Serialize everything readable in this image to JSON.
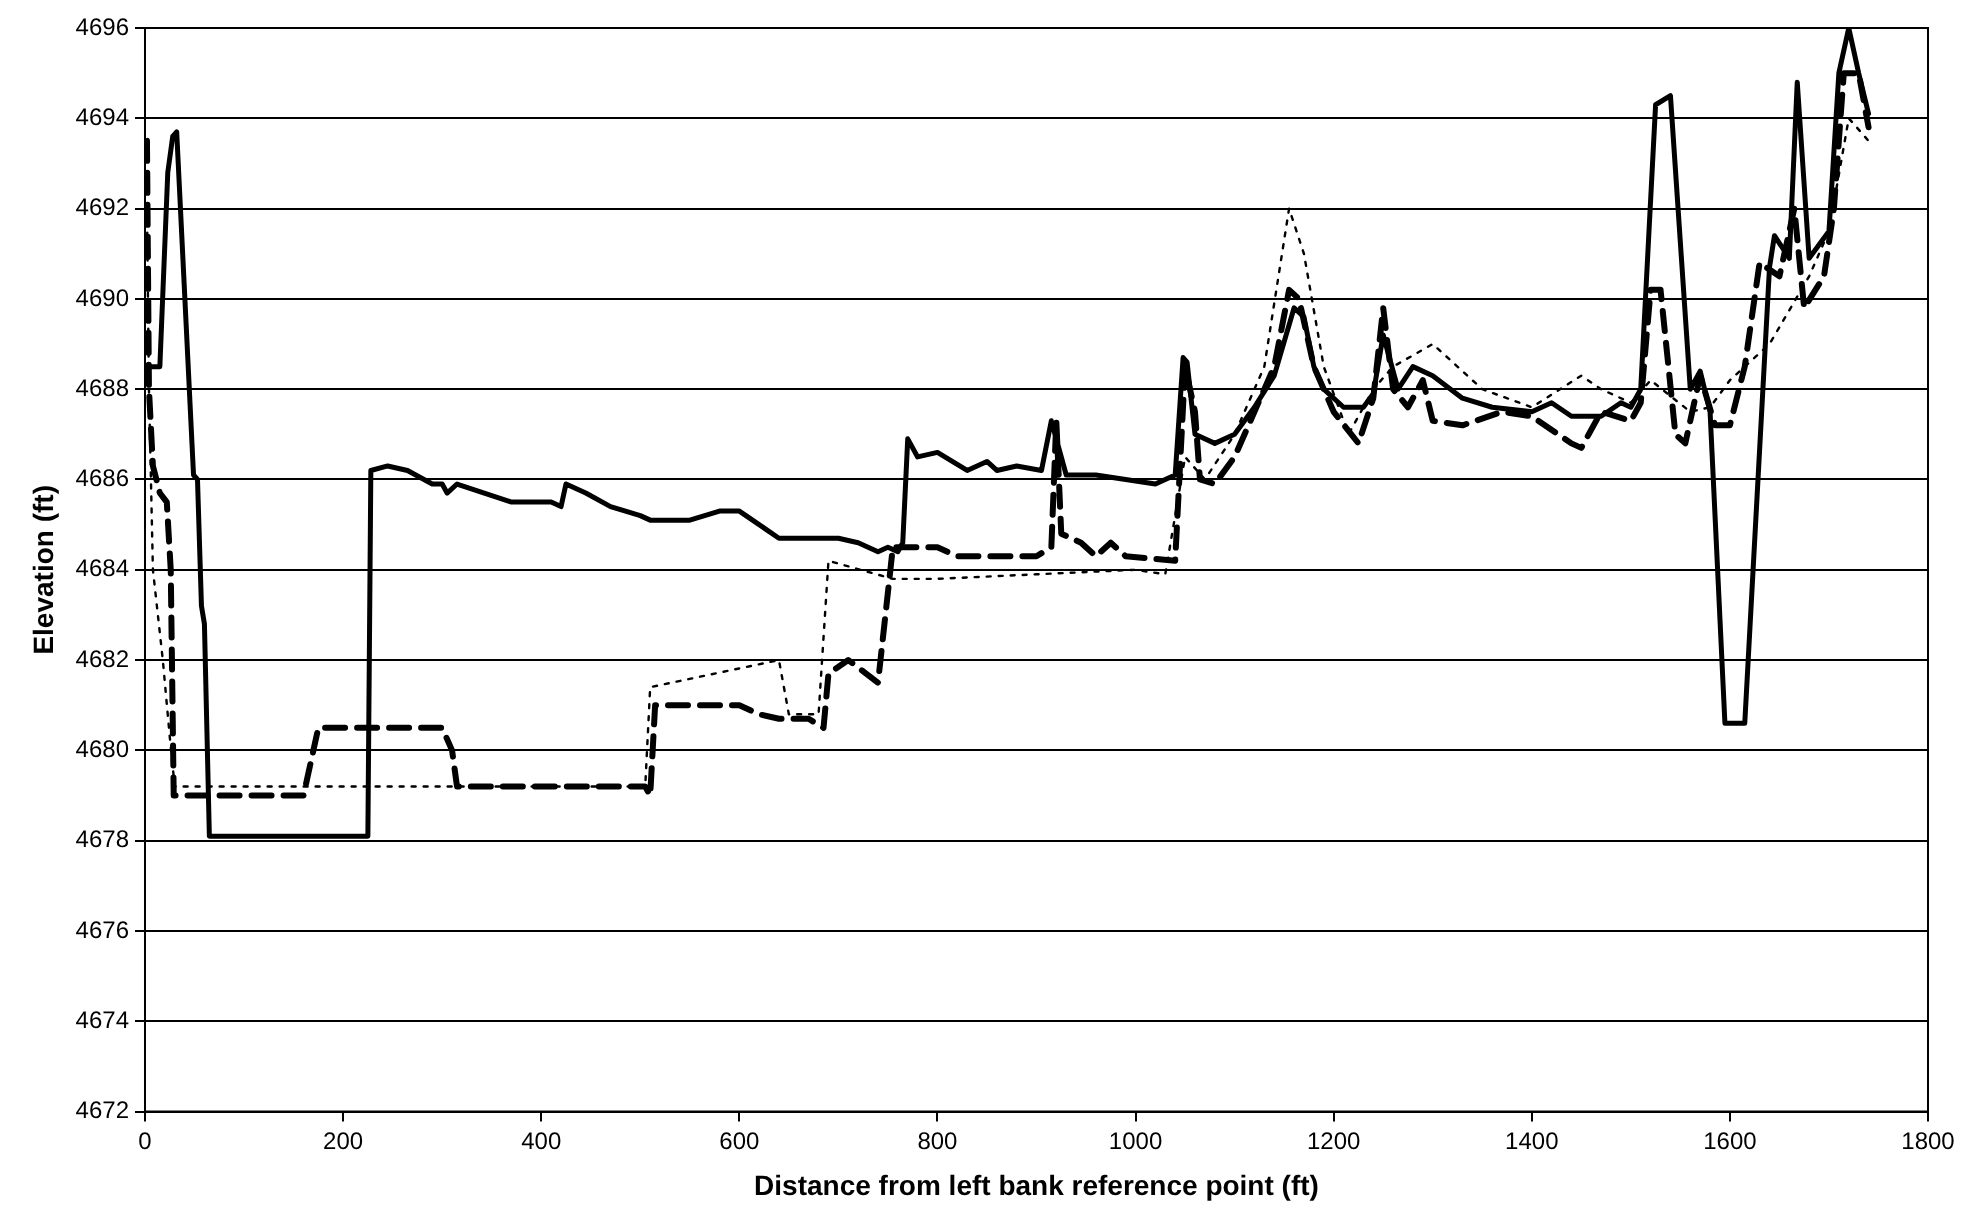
{
  "chart_data": {
    "type": "line",
    "xlabel": "Distance from left bank reference point (ft)",
    "ylabel": "Elevation (ft)",
    "xlim": [
      0,
      1800
    ],
    "xticks": [
      0,
      200,
      400,
      600,
      800,
      1000,
      1200,
      1400,
      1600,
      1800
    ],
    "ylim": [
      4672,
      4696
    ],
    "yticks": [
      4672,
      4674,
      4676,
      4678,
      4680,
      4682,
      4684,
      4686,
      4688,
      4690,
      4692,
      4694,
      4696
    ],
    "grid": "y",
    "legend": false,
    "marker": "none",
    "series": [
      {
        "color": "#000000",
        "line_style": "solid",
        "x": [
          5,
          15,
          23,
          28,
          32,
          49,
          53,
          57,
          60,
          65,
          120,
          225,
          228,
          245,
          265,
          290,
          300,
          305,
          315,
          370,
          410,
          420,
          425,
          445,
          470,
          500,
          510,
          550,
          580,
          600,
          620,
          640,
          700,
          720,
          740,
          750,
          760,
          765,
          770,
          780,
          800,
          830,
          850,
          860,
          880,
          905,
          915,
          930,
          960,
          990,
          1020,
          1040,
          1048,
          1052,
          1060,
          1080,
          1100,
          1120,
          1140,
          1160,
          1170,
          1180,
          1190,
          1210,
          1230,
          1240,
          1250,
          1265,
          1280,
          1300,
          1330,
          1360,
          1400,
          1420,
          1440,
          1470,
          1490,
          1500,
          1510,
          1525,
          1540,
          1560,
          1570,
          1580,
          1595,
          1615,
          1640,
          1645,
          1660,
          1668,
          1680,
          1700,
          1710,
          1720,
          1730,
          1740
        ],
        "values": [
          4688.5,
          4688.5,
          4692.8,
          4693.6,
          4693.7,
          4686.1,
          4686,
          4683.2,
          4682.8,
          4678.1,
          4678.1,
          4678.1,
          4686.2,
          4686.3,
          4686.2,
          4685.9,
          4685.9,
          4685.7,
          4685.9,
          4685.5,
          4685.5,
          4685.4,
          4685.9,
          4685.7,
          4685.4,
          4685.2,
          4685.1,
          4685.1,
          4685.3,
          4685.3,
          4685,
          4684.7,
          4684.7,
          4684.6,
          4684.4,
          4684.5,
          4684.4,
          4684.6,
          4686.9,
          4686.5,
          4686.6,
          4686.2,
          4686.4,
          4686.2,
          4686.3,
          4686.2,
          4687.3,
          4686.1,
          4686.1,
          4686,
          4685.9,
          4686.1,
          4688.7,
          4688.6,
          4687,
          4686.8,
          4687,
          4687.6,
          4688.3,
          4689.8,
          4689.6,
          4688.5,
          4688,
          4687.6,
          4687.6,
          4687.9,
          4689.2,
          4688,
          4688.5,
          4688.3,
          4687.8,
          4687.6,
          4687.5,
          4687.7,
          4687.4,
          4687.4,
          4687.7,
          4687.6,
          4688,
          4694.3,
          4694.5,
          4688,
          4688.4,
          4687.5,
          4680.6,
          4680.6,
          4690.7,
          4691.4,
          4690.9,
          4694.8,
          4690.9,
          4691.5,
          4695,
          4696,
          4695,
          4694.1
        ]
      },
      {
        "color": "#000000",
        "line_style": "dashed",
        "x": [
          2,
          4,
          8,
          15,
          22,
          26,
          29,
          80,
          160,
          165,
          175,
          280,
          300,
          310,
          315,
          505,
          510,
          515,
          560,
          600,
          620,
          640,
          670,
          685,
          690,
          710,
          740,
          755,
          800,
          820,
          900,
          915,
          920,
          925,
          945,
          960,
          975,
          990,
          1040,
          1050,
          1060,
          1065,
          1080,
          1100,
          1120,
          1140,
          1155,
          1165,
          1180,
          1200,
          1225,
          1240,
          1250,
          1260,
          1275,
          1290,
          1300,
          1330,
          1370,
          1400,
          1440,
          1450,
          1470,
          1500,
          1510,
          1520,
          1530,
          1545,
          1555,
          1570,
          1585,
          1600,
          1615,
          1630,
          1650,
          1665,
          1675,
          1695,
          1705,
          1715,
          1730,
          1740
        ],
        "values": [
          4693.5,
          4688,
          4686.3,
          4685.7,
          4685.5,
          4684,
          4679,
          4679,
          4679,
          4679.5,
          4680.5,
          4680.5,
          4680.5,
          4680,
          4679.2,
          4679.2,
          4679,
          4681,
          4681,
          4681,
          4680.8,
          4680.7,
          4680.7,
          4680.5,
          4681.7,
          4682,
          4681.5,
          4684.5,
          4684.5,
          4684.3,
          4684.3,
          4684.5,
          4687.3,
          4684.8,
          4684.6,
          4684.3,
          4684.6,
          4684.3,
          4684.2,
          4688.5,
          4687.5,
          4686,
          4685.9,
          4686.5,
          4687.5,
          4688.5,
          4690.2,
          4690,
          4688.5,
          4687.5,
          4686.8,
          4687.8,
          4689.8,
          4688,
          4687.6,
          4688.2,
          4687.3,
          4687.2,
          4687.5,
          4687.4,
          4686.8,
          4686.7,
          4687.5,
          4687.3,
          4687.7,
          4690.2,
          4690.2,
          4687,
          4686.8,
          4688.3,
          4687.2,
          4687.2,
          4688.5,
          4690.8,
          4690.5,
          4692,
          4689.8,
          4690.5,
          4692,
          4695,
          4695,
          4693.8
        ]
      },
      {
        "color": "#000000",
        "line_style": "dotted",
        "x": [
          2,
          4,
          8,
          18,
          25,
          30,
          200,
          505,
          510,
          640,
          650,
          680,
          690,
          755,
          800,
          900,
          1000,
          1030,
          1050,
          1070,
          1100,
          1130,
          1155,
          1170,
          1190,
          1215,
          1240,
          1260,
          1300,
          1350,
          1400,
          1450,
          1470,
          1500,
          1520,
          1560,
          1580,
          1600,
          1640,
          1680,
          1700,
          1720,
          1740
        ],
        "values": [
          4692,
          4688,
          4684,
          4682,
          4680.3,
          4679.2,
          4679.2,
          4679.2,
          4681.4,
          4682,
          4680.8,
          4680.8,
          4684.2,
          4683.8,
          4683.8,
          4683.9,
          4684,
          4683.9,
          4686.5,
          4686,
          4687,
          4688.5,
          4692,
          4691,
          4688.5,
          4687,
          4688,
          4688.5,
          4689,
          4688,
          4687.6,
          4688.3,
          4688,
          4687.7,
          4688.2,
          4687.5,
          4687.6,
          4688.2,
          4689,
          4690.5,
          4691.5,
          4694,
          4693.5
        ]
      }
    ]
  }
}
